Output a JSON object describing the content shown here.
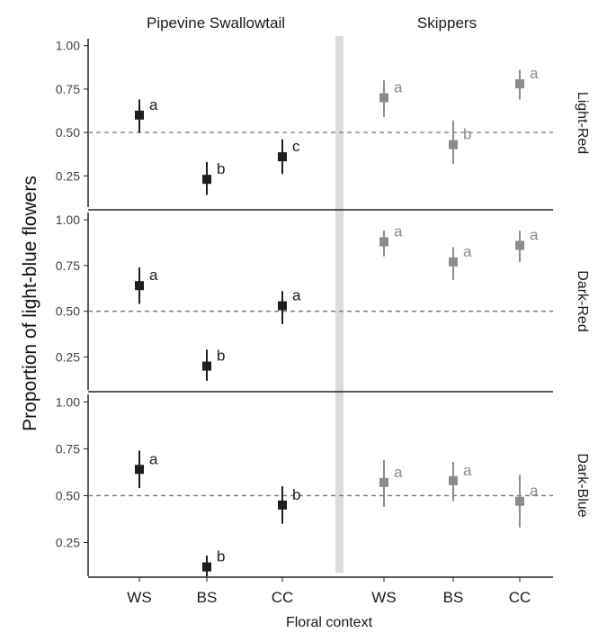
{
  "chart_data": {
    "type": "scatter",
    "subtype": "point-with-error-bars, faceted grid (3 rows x 2 columns)",
    "ylabel": "Proportion of  light-blue flowers",
    "xlabel": "Floral context",
    "categories": [
      "WS",
      "BS",
      "CC"
    ],
    "yticks": [
      "1.00",
      "0.75",
      "0.50",
      "0.25"
    ],
    "ylim": [
      0.07,
      1.04
    ],
    "reference_line": 0.5,
    "grid": false,
    "columns": [
      {
        "title": "Pipevine Swallowtail",
        "color": "#1e1e1e"
      },
      {
        "title": "Skippers",
        "color": "#8c8c8c"
      }
    ],
    "separator_color": "#dcdcdc",
    "rows": [
      {
        "label": "Light-Red",
        "panels": [
          {
            "points": [
              {
                "x": "WS",
                "y": 0.6,
                "low": 0.5,
                "high": 0.69,
                "letter": "a"
              },
              {
                "x": "BS",
                "y": 0.23,
                "low": 0.14,
                "high": 0.33,
                "letter": "b"
              },
              {
                "x": "CC",
                "y": 0.36,
                "low": 0.26,
                "high": 0.46,
                "letter": "c"
              }
            ]
          },
          {
            "points": [
              {
                "x": "WS",
                "y": 0.7,
                "low": 0.59,
                "high": 0.8,
                "letter": "a"
              },
              {
                "x": "BS",
                "y": 0.43,
                "low": 0.32,
                "high": 0.57,
                "letter": "b"
              },
              {
                "x": "CC",
                "y": 0.78,
                "low": 0.69,
                "high": 0.86,
                "letter": "a"
              }
            ]
          }
        ]
      },
      {
        "label": "Dark-Red",
        "panels": [
          {
            "points": [
              {
                "x": "WS",
                "y": 0.64,
                "low": 0.54,
                "high": 0.74,
                "letter": "a"
              },
              {
                "x": "BS",
                "y": 0.2,
                "low": 0.12,
                "high": 0.29,
                "letter": "b"
              },
              {
                "x": "CC",
                "y": 0.53,
                "low": 0.43,
                "high": 0.61,
                "letter": "a"
              }
            ]
          },
          {
            "points": [
              {
                "x": "WS",
                "y": 0.88,
                "low": 0.8,
                "high": 0.94,
                "letter": "a"
              },
              {
                "x": "BS",
                "y": 0.77,
                "low": 0.67,
                "high": 0.85,
                "letter": "a"
              },
              {
                "x": "CC",
                "y": 0.86,
                "low": 0.77,
                "high": 0.94,
                "letter": "a"
              }
            ]
          }
        ]
      },
      {
        "label": "Dark-Blue",
        "panels": [
          {
            "points": [
              {
                "x": "WS",
                "y": 0.64,
                "low": 0.54,
                "high": 0.74,
                "letter": "a"
              },
              {
                "x": "BS",
                "y": 0.12,
                "low": 0.07,
                "high": 0.18,
                "letter": "b"
              },
              {
                "x": "CC",
                "y": 0.45,
                "low": 0.35,
                "high": 0.55,
                "letter": "b"
              }
            ]
          },
          {
            "points": [
              {
                "x": "WS",
                "y": 0.57,
                "low": 0.44,
                "high": 0.69,
                "letter": "a"
              },
              {
                "x": "BS",
                "y": 0.58,
                "low": 0.47,
                "high": 0.68,
                "letter": "a"
              },
              {
                "x": "CC",
                "y": 0.47,
                "low": 0.33,
                "high": 0.61,
                "letter": "a"
              }
            ]
          }
        ]
      }
    ]
  }
}
